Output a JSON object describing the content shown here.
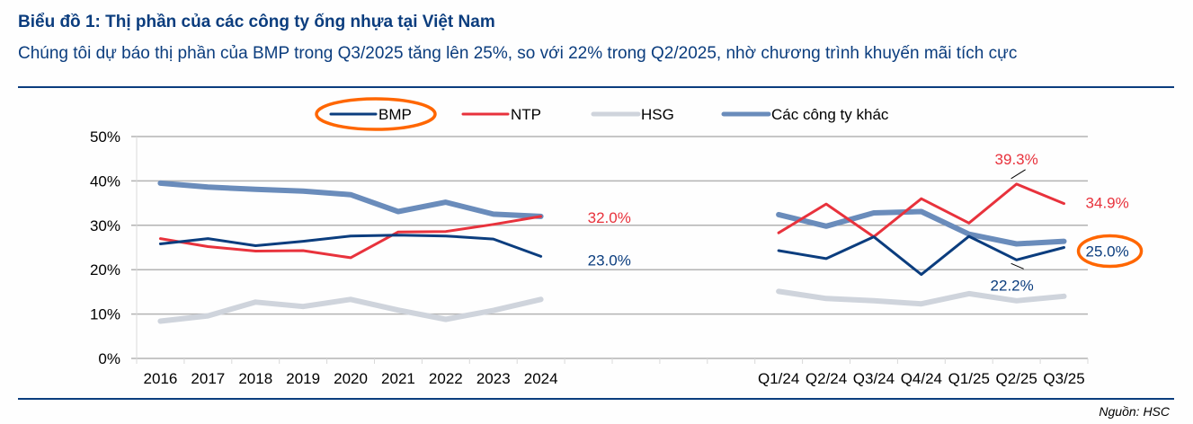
{
  "header": {
    "title": "Biểu đồ 1: Thị phần của các công ty ống nhựa tại Việt Nam",
    "subtitle": "Chúng tôi dự báo thị phần của BMP trong Q3/2025 tăng lên 25%, so với 22% trong Q2/2025, nhờ chương trình khuyến mãi tích cực"
  },
  "footer": {
    "source": "Nguồn: HSC"
  },
  "colors": {
    "title": "#0b3d7e",
    "highlight_ellipse": "#ff6600",
    "gridline": "#b3b3b3"
  },
  "chart_data": {
    "type": "line",
    "title": "Biểu đồ 1: Thị phần của các công ty ống nhựa tại Việt Nam",
    "xlabel": "",
    "ylabel": "",
    "ylim": [
      0,
      50
    ],
    "y_ticks": [
      "0%",
      "10%",
      "20%",
      "30%",
      "40%",
      "50%"
    ],
    "y_tick_values": [
      0,
      10,
      20,
      30,
      40,
      50
    ],
    "grid": true,
    "legend_position": "top",
    "categories": [
      "2016",
      "2017",
      "2018",
      "2019",
      "2020",
      "2021",
      "2022",
      "2023",
      "2024",
      "",
      "",
      "",
      "",
      "Q1/24",
      "Q2/24",
      "Q3/24",
      "Q4/24",
      "Q1/25",
      "Q2/25",
      "Q3/25"
    ],
    "segments": [
      [
        0,
        8
      ],
      [
        13,
        19
      ]
    ],
    "series": [
      {
        "name": "BMP",
        "color": "#0b3d7e",
        "width": 3,
        "highlighted": true,
        "values": [
          25.8,
          27.0,
          25.4,
          26.4,
          27.6,
          27.8,
          27.6,
          26.9,
          23.0,
          null,
          null,
          null,
          null,
          24.3,
          22.5,
          27.4,
          18.9,
          27.5,
          22.2,
          25.0
        ]
      },
      {
        "name": "NTP",
        "color": "#e8323c",
        "width": 3,
        "highlighted": false,
        "values": [
          27.0,
          25.2,
          24.2,
          24.3,
          22.7,
          28.5,
          28.6,
          30.2,
          32.0,
          null,
          null,
          null,
          null,
          28.3,
          34.8,
          27.4,
          36.0,
          30.5,
          39.3,
          34.9
        ]
      },
      {
        "name": "HSG",
        "color": "#cfd4dc",
        "width": 6,
        "highlighted": false,
        "values": [
          8.4,
          9.6,
          12.7,
          11.7,
          13.3,
          10.9,
          8.8,
          10.8,
          13.3,
          null,
          null,
          null,
          null,
          15.1,
          13.5,
          13.0,
          12.3,
          14.6,
          13.0,
          14.0
        ]
      },
      {
        "name": "Các công ty khác",
        "color": "#6a8cbb",
        "width": 6,
        "highlighted": false,
        "values": [
          39.5,
          38.6,
          38.1,
          37.7,
          36.9,
          33.1,
          35.2,
          32.5,
          32.0,
          null,
          null,
          null,
          null,
          32.4,
          29.8,
          32.8,
          33.1,
          28.0,
          25.8,
          26.4
        ]
      }
    ],
    "annotations": [
      {
        "series": "NTP",
        "category": "2024",
        "text": "32.0%",
        "color": "#e8323c"
      },
      {
        "series": "BMP",
        "category": "2024",
        "text": "23.0%",
        "color": "#0b3d7e"
      },
      {
        "series": "NTP",
        "category": "Q2/25",
        "text": "39.3%",
        "color": "#e8323c",
        "leader": true
      },
      {
        "series": "NTP",
        "category": "Q3/25",
        "text": "34.9%",
        "color": "#e8323c"
      },
      {
        "series": "BMP",
        "category": "Q2/25",
        "text": "22.2%",
        "color": "#0b3d7e",
        "leader": true
      },
      {
        "series": "BMP",
        "category": "Q3/25",
        "text": "25.0%",
        "color": "#0b3d7e",
        "circled": true
      }
    ]
  }
}
